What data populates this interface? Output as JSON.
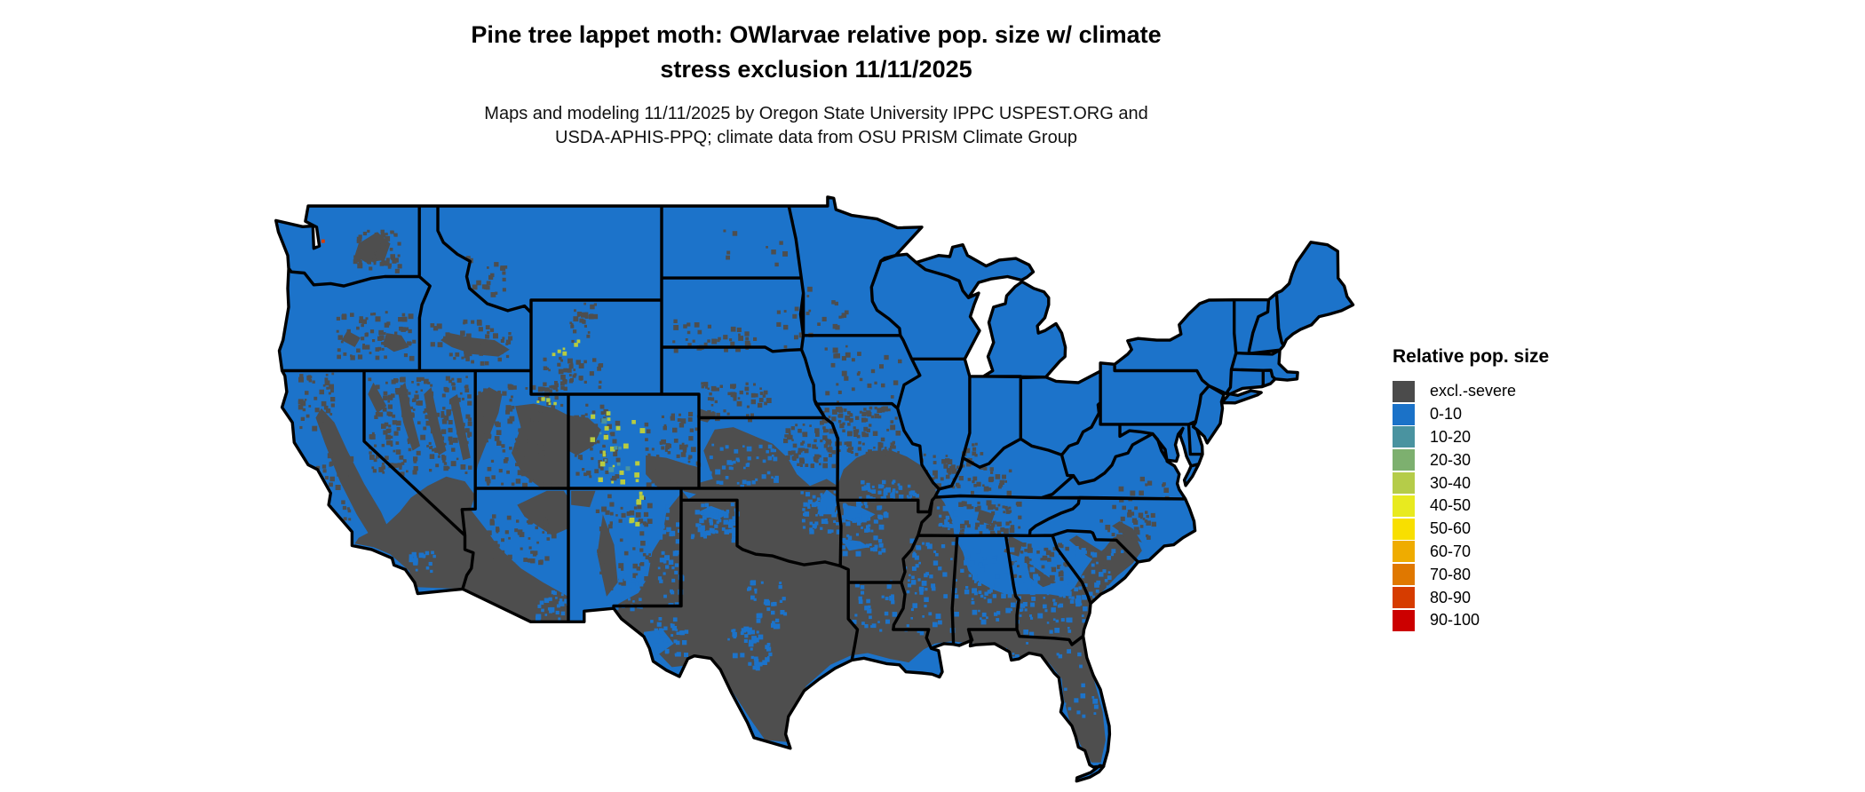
{
  "title": {
    "line1": "Pine tree lappet moth: OWlarvae relative pop. size w/ climate",
    "line2": "stress exclusion 11/11/2025"
  },
  "subtitle": {
    "line1": "Maps and modeling 11/11/2025 by Oregon State University IPPC USPEST.ORG and",
    "line2": "USDA-APHIS-PPQ; climate data from OSU PRISM Climate Group"
  },
  "legend": {
    "title": "Relative pop. size",
    "items": [
      {
        "label": "excl.-severe",
        "color": "#4B4B4B"
      },
      {
        "label": "0-10",
        "color": "#1B72C8"
      },
      {
        "label": "10-20",
        "color": "#4A93A0"
      },
      {
        "label": "20-30",
        "color": "#7DB06F"
      },
      {
        "label": "30-40",
        "color": "#B5CC49"
      },
      {
        "label": "40-50",
        "color": "#E8EA1F"
      },
      {
        "label": "50-60",
        "color": "#F8DF00"
      },
      {
        "label": "60-70",
        "color": "#EFAC00"
      },
      {
        "label": "70-80",
        "color": "#E07800"
      },
      {
        "label": "80-90",
        "color": "#D63C00"
      },
      {
        "label": "90-100",
        "color": "#CC0000"
      }
    ]
  },
  "map": {
    "region": "Contiguous United States",
    "base_class_color": "#1C73CA",
    "exclusion_class_color": "#4E4E4E",
    "state_border_color": "#000000",
    "background_color": "#FFFFFF",
    "pattern_summary": "Northern and western US mapped as 0-10 (blue); southern tier (TX, OK, LA, MS, AL, FL, S GA, central SC, AR, S MO, deserts of S CA / AZ / NM / S NV / UT) mapped as excluded-severe climate stress (dark gray); thin blue fringe along Gulf and Atlantic coasts; scattered mountain patches reversed within each zone."
  }
}
